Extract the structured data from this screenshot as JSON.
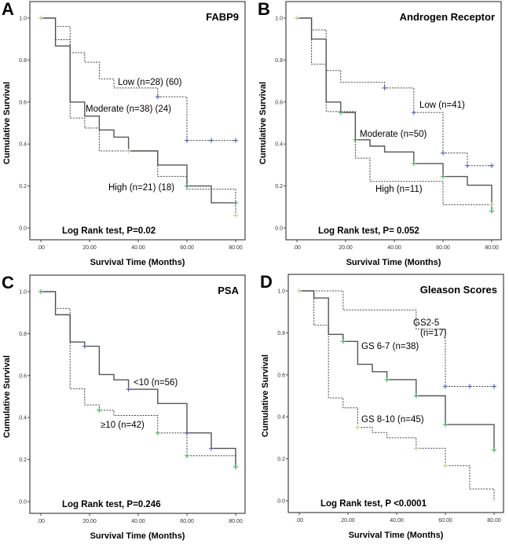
{
  "chart_data": [
    {
      "panel": "A",
      "type": "line",
      "title": "FABP9",
      "xlabel": "Survival Time (Months)",
      "ylabel": "Cumulative Survival",
      "xlim": [
        0,
        80
      ],
      "ylim": [
        0,
        1
      ],
      "xticks": [
        ".00",
        "20.00",
        "40.00",
        "60.00",
        "80.00"
      ],
      "yticks": [
        "0.0",
        "0.2",
        "0.4",
        "0.6",
        "0.8",
        "1.0"
      ],
      "annotation": "Log Rank test, P=0.02",
      "series": [
        {
          "name": "Low (n=28) (60)",
          "style": "dashed",
          "censor_color": "#5566bb",
          "steps": [
            [
              0,
              1
            ],
            [
              6,
              0.96
            ],
            [
              12,
              0.835
            ],
            [
              18,
              0.79
            ],
            [
              24,
              0.71
            ],
            [
              30,
              0.667
            ],
            [
              48,
              0.625
            ],
            [
              60,
              0.417
            ],
            [
              80,
              0.417
            ]
          ],
          "censored": [
            [
              48,
              0.625
            ],
            [
              60,
              0.417
            ],
            [
              70,
              0.417
            ],
            [
              80,
              0.417
            ]
          ]
        },
        {
          "name": "Moderate (n=38) (24)",
          "style": "solid",
          "censor_color": "#44bb66",
          "steps": [
            [
              0,
              1
            ],
            [
              6,
              0.867
            ],
            [
              12,
              0.6
            ],
            [
              18,
              0.533
            ],
            [
              24,
              0.467
            ],
            [
              30,
              0.433
            ],
            [
              36,
              0.367
            ],
            [
              48,
              0.3
            ],
            [
              60,
              0.2
            ],
            [
              70,
              0.12
            ],
            [
              80,
              0.12
            ]
          ],
          "censored": [
            [
              60,
              0.2
            ],
            [
              80,
              0.12
            ]
          ]
        },
        {
          "name": "High (n=21) (18)",
          "style": "dashed",
          "censor_color": "#cccc88",
          "steps": [
            [
              0,
              1
            ],
            [
              6,
              0.897
            ],
            [
              12,
              0.524
            ],
            [
              18,
              0.476
            ],
            [
              24,
              0.367
            ],
            [
              48,
              0.246
            ],
            [
              60,
              0.185
            ],
            [
              80,
              0.06
            ]
          ],
          "censored": [
            [
              0,
              1
            ],
            [
              36,
              0.367
            ],
            [
              80,
              0.06
            ]
          ]
        }
      ]
    },
    {
      "panel": "B",
      "type": "line",
      "title": "Androgen Receptor",
      "xlabel": "Survival Time (Months)",
      "ylabel": "Cumulative Survival",
      "xlim": [
        0,
        80
      ],
      "ylim": [
        0,
        1
      ],
      "xticks": [
        ".00",
        "20.00",
        "40.00",
        "60.00",
        "80.00"
      ],
      "yticks": [
        "0.0",
        "0.2",
        "0.4",
        "0.6",
        "0.8",
        "1.0"
      ],
      "annotation": "Log Rank test, P= 0.052",
      "series": [
        {
          "name": "Low (n=41)",
          "style": "dashed",
          "censor_color": "#5566bb",
          "steps": [
            [
              0,
              1
            ],
            [
              6,
              0.944
            ],
            [
              12,
              0.75
            ],
            [
              18,
              0.694
            ],
            [
              36,
              0.667
            ],
            [
              48,
              0.55
            ],
            [
              60,
              0.357
            ],
            [
              70,
              0.297
            ],
            [
              80,
              0.297
            ]
          ],
          "censored": [
            [
              36,
              0.667
            ],
            [
              48,
              0.55
            ],
            [
              60,
              0.357
            ],
            [
              70,
              0.297
            ],
            [
              80,
              0.297
            ]
          ]
        },
        {
          "name": "Moderate (n=50)",
          "style": "solid",
          "censor_color": "#44bb66",
          "steps": [
            [
              0,
              1
            ],
            [
              6,
              0.9
            ],
            [
              12,
              0.6
            ],
            [
              18,
              0.55
            ],
            [
              24,
              0.42
            ],
            [
              30,
              0.39
            ],
            [
              36,
              0.362
            ],
            [
              48,
              0.307
            ],
            [
              60,
              0.245
            ],
            [
              70,
              0.204
            ],
            [
              80,
              0.08
            ]
          ],
          "censored": [
            [
              18,
              0.55
            ],
            [
              24,
              0.42
            ],
            [
              48,
              0.307
            ],
            [
              60,
              0.245
            ],
            [
              80,
              0.08
            ]
          ]
        },
        {
          "name": "High (n=11)",
          "style": "dashed",
          "censor_color": "#cccc88",
          "steps": [
            [
              0,
              1
            ],
            [
              6,
              0.78
            ],
            [
              12,
              0.555
            ],
            [
              24,
              0.333
            ],
            [
              30,
              0.222
            ],
            [
              60,
              0.111
            ],
            [
              80,
              0.111
            ]
          ],
          "censored": [
            [
              0,
              1
            ],
            [
              80,
              0.111
            ]
          ]
        }
      ]
    },
    {
      "panel": "C",
      "type": "line",
      "title": "PSA",
      "xlabel": "Survival Time (Months)",
      "ylabel": "Cumulative Survival",
      "xlim": [
        0,
        80
      ],
      "ylim": [
        0,
        1
      ],
      "xticks": [
        ".00",
        "20.00",
        "40.00",
        "60.00",
        "80.00"
      ],
      "yticks": [
        "0.0",
        "0.2",
        "0.4",
        "0.6",
        "0.8",
        "1.0"
      ],
      "annotation": "Log Rank test, P=0.246",
      "series": [
        {
          "name": "<10 (n=56)",
          "style": "solid",
          "censor_color": "#5566bb",
          "steps": [
            [
              0,
              1
            ],
            [
              6,
              0.89
            ],
            [
              12,
              0.76
            ],
            [
              18,
              0.74
            ],
            [
              24,
              0.605
            ],
            [
              30,
              0.58
            ],
            [
              36,
              0.535
            ],
            [
              48,
              0.467
            ],
            [
              60,
              0.327
            ],
            [
              70,
              0.253
            ],
            [
              80,
              0.165
            ]
          ],
          "censored": [
            [
              18,
              0.74
            ],
            [
              36,
              0.535
            ],
            [
              60,
              0.327
            ],
            [
              70,
              0.253
            ],
            [
              80,
              0.165
            ]
          ]
        },
        {
          "name": "≥10 (n=42)",
          "style": "dashed",
          "censor_color": "#44bb66",
          "steps": [
            [
              0,
              1
            ],
            [
              6,
              0.92
            ],
            [
              12,
              0.537
            ],
            [
              18,
              0.46
            ],
            [
              24,
              0.435
            ],
            [
              30,
              0.41
            ],
            [
              48,
              0.327
            ],
            [
              60,
              0.218
            ],
            [
              80,
              0.165
            ]
          ],
          "censored": [
            [
              0,
              1
            ],
            [
              24,
              0.435
            ],
            [
              48,
              0.327
            ],
            [
              60,
              0.218
            ],
            [
              80,
              0.165
            ]
          ]
        }
      ]
    },
    {
      "panel": "D",
      "type": "line",
      "title": "Gleason Scores",
      "xlabel": "Survival Time (Months)",
      "ylabel": "Cumulative Survival",
      "xlim": [
        0,
        80
      ],
      "ylim": [
        0,
        1
      ],
      "xticks": [
        ".00",
        "20.00",
        "40.00",
        "60.00",
        "80.00"
      ],
      "yticks": [
        "0.0",
        "0.2",
        "0.4",
        "0.6",
        "0.8",
        "1.0"
      ],
      "annotation": "Log Rank test, P <0.0001",
      "series": [
        {
          "name": "GS2-5 (n=17)",
          "label_lines": [
            "GS2-5",
            "(n=17)"
          ],
          "style": "dashed",
          "censor_color": "#5566bb",
          "steps": [
            [
              0,
              1
            ],
            [
              18,
              0.909
            ],
            [
              48,
              0.818
            ],
            [
              60,
              0.545
            ],
            [
              80,
              0.545
            ]
          ],
          "censored": [
            [
              60,
              0.545
            ],
            [
              70,
              0.545
            ],
            [
              80,
              0.545
            ]
          ]
        },
        {
          "name": "GS 6-7 (n=38)",
          "style": "solid",
          "censor_color": "#44bb66",
          "steps": [
            [
              0,
              1
            ],
            [
              6,
              0.966
            ],
            [
              12,
              0.793
            ],
            [
              18,
              0.759
            ],
            [
              24,
              0.65
            ],
            [
              30,
              0.615
            ],
            [
              36,
              0.577
            ],
            [
              48,
              0.5
            ],
            [
              60,
              0.363
            ],
            [
              80,
              0.242
            ]
          ],
          "censored": [
            [
              18,
              0.759
            ],
            [
              36,
              0.577
            ],
            [
              48,
              0.5
            ],
            [
              60,
              0.363
            ],
            [
              80,
              0.242
            ]
          ]
        },
        {
          "name": "GS 8-10 (n=45)",
          "style": "dashed",
          "censor_color": "#cccc88",
          "steps": [
            [
              0,
              1
            ],
            [
              6,
              0.836
            ],
            [
              12,
              0.49
            ],
            [
              18,
              0.443
            ],
            [
              24,
              0.35
            ],
            [
              30,
              0.325
            ],
            [
              36,
              0.3
            ],
            [
              48,
              0.25
            ],
            [
              60,
              0.167
            ],
            [
              70,
              0.056
            ],
            [
              80,
              0
            ]
          ],
          "censored": [
            [
              0,
              1
            ],
            [
              24,
              0.35
            ],
            [
              48,
              0.25
            ],
            [
              60,
              0.167
            ]
          ]
        }
      ]
    }
  ]
}
